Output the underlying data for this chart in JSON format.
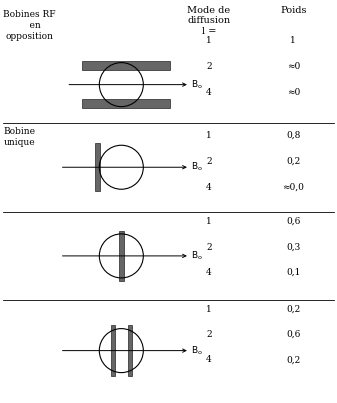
{
  "header_col1": "Mode de\ndiffusion\nl =",
  "header_col2": "Poids",
  "rows": [
    {
      "label": "Bobines RF\n    en\nopposition",
      "diagram": "opposition",
      "modes": [
        "1",
        "2",
        "4"
      ],
      "poids": [
        "1",
        "≈0",
        "≈0"
      ]
    },
    {
      "label": "Bobine\nunique",
      "diagram": "single_left",
      "modes": [
        "1",
        "2",
        "4"
      ],
      "poids": [
        "0,8",
        "0,2",
        "≈0,0"
      ]
    },
    {
      "label": "",
      "diagram": "single_center",
      "modes": [
        "1",
        "2",
        "4"
      ],
      "poids": [
        "0,6",
        "0,3",
        "0,1"
      ]
    },
    {
      "label": "",
      "diagram": "double_center",
      "modes": [
        "1",
        "2",
        "4"
      ],
      "poids": [
        "0,2",
        "0,6",
        "0,2"
      ]
    }
  ],
  "bg_color": "#ffffff",
  "text_color": "#000000",
  "font_size": 6.5,
  "header_font_size": 7.0,
  "bar_color": "#666666",
  "fig_width": 3.37,
  "fig_height": 4.03,
  "dpi": 100
}
